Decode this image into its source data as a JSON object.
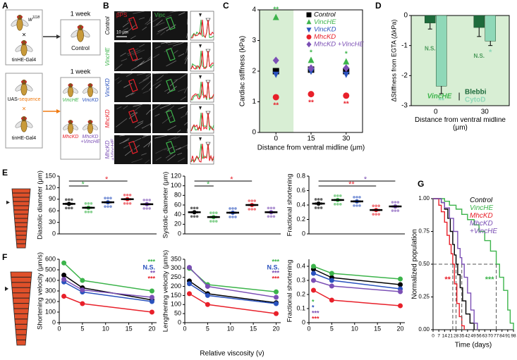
{
  "panel_labels": [
    "A",
    "B",
    "C",
    "D",
    "E",
    "F",
    "G"
  ],
  "panel_a": {
    "week_label_top": "1 week",
    "week_label_bottom": "1 week",
    "control_parent_female": {
      "text": "w",
      "sup": "1118"
    },
    "cross_top": "×",
    "driver_top": "tinHE-Gal4",
    "control_label": "Control",
    "uas_prefix": "UAS-",
    "uas_suffix": "sequence",
    "cross_bottom": "×",
    "driver_bottom": "tinHE-Gal4",
    "genotypes": [
      {
        "label": "VincHE",
        "color": "#3cb44b"
      },
      {
        "label": "VincKD",
        "color": "#2a52be"
      },
      {
        "label": "MhcKD",
        "color": "#e8202a"
      },
      {
        "label": "MhcKD +VincHE",
        "color": "#7b4fb5"
      }
    ]
  },
  "panel_b": {
    "channels": [
      {
        "label": "βPS",
        "color": "#e8202a"
      },
      {
        "label": "Vinc",
        "color": "#3cb44b"
      }
    ],
    "scale_bar": "10 μm",
    "rows": [
      {
        "label": "Control",
        "color": "#000000"
      },
      {
        "label": "VincHE",
        "color": "#3cb44b"
      },
      {
        "label": "VincKD",
        "color": "#2a52be"
      },
      {
        "label": "MhcKD",
        "color": "#e8202a"
      },
      {
        "label": "MhcKD +VincHE",
        "color": "#7b4fb5"
      }
    ]
  },
  "chart_data": [
    {
      "type": "scatter",
      "y_label": "Cardiac stiffness (kPa)",
      "x_label": "Distance from ventral midline (μm)",
      "x": [
        0,
        15,
        30
      ],
      "xlim": [
        -7,
        37
      ],
      "xticks": [
        0,
        15,
        30
      ],
      "ylim": [
        0,
        4
      ],
      "yticks": [
        0,
        1,
        2,
        3,
        4
      ],
      "shade_color": "#d8eed4",
      "series": [
        {
          "name": "Control",
          "color": "#000000",
          "marker": "square",
          "values": [
            2.0,
            2.05,
            2.0
          ]
        },
        {
          "name": "VincHE",
          "color": "#3cb44b",
          "marker": "triangle-up",
          "values": [
            3.75,
            2.35,
            2.3
          ],
          "significance": [
            "**",
            "*",
            "*"
          ],
          "significance_position": "above"
        },
        {
          "name": "VincKD",
          "color": "#2a52be",
          "marker": "triangle-down",
          "values": [
            1.9,
            2.0,
            1.9
          ]
        },
        {
          "name": "MhcKD",
          "color": "#e8202a",
          "marker": "circle",
          "values": [
            1.15,
            1.25,
            1.2
          ],
          "significance": [
            "**",
            "**",
            "**"
          ],
          "significance_position": "below"
        },
        {
          "name": "MhcKD +VincHE",
          "color": "#7b4fb5",
          "marker": "diamond",
          "values": [
            2.35,
            2.1,
            2.1
          ]
        }
      ]
    },
    {
      "type": "bar",
      "y_label": "ΔStiffness from EGTA (ΔkPa)",
      "x_label": "Distance from ventral midline (μm)",
      "categories": [
        "0",
        "30"
      ],
      "ylim": [
        -3,
        0
      ],
      "yticks": [
        0,
        -1,
        -2,
        -3
      ],
      "shade_color": "#d8eed4",
      "legend_title": "VincHE",
      "legend_separator": "|",
      "series": [
        {
          "name": "Blebbi",
          "color": "#1e6b3c",
          "values": [
            -0.25,
            -0.4
          ],
          "errors": [
            0.2,
            0.3
          ],
          "significance": [
            "N.S.",
            "N.S."
          ]
        },
        {
          "name": "CytoD",
          "color": "#8fd8b8",
          "values": [
            -2.35,
            -0.85
          ],
          "errors": [
            0.25,
            0.15
          ],
          "significance": [
            "**",
            "*"
          ]
        }
      ]
    },
    {
      "type": "dot",
      "y_label": "Diastolic diameter (μm)",
      "categories": [
        null,
        null,
        null,
        null,
        null
      ],
      "values": [
        78,
        68,
        82,
        90,
        77
      ],
      "colors": [
        "#000000",
        "#3cb44b",
        "#2a52be",
        "#e8202a",
        "#7b4fb5"
      ],
      "significance": [
        null,
        "*",
        null,
        "*",
        null
      ],
      "ylim": [
        0,
        150
      ],
      "yticks": [
        0,
        30,
        60,
        90,
        120,
        150
      ]
    },
    {
      "type": "dot",
      "y_label": "Systolic diameter (μm)",
      "categories": [
        null,
        null,
        null,
        null,
        null
      ],
      "values": [
        45,
        35,
        44,
        60,
        45
      ],
      "colors": [
        "#000000",
        "#3cb44b",
        "#2a52be",
        "#e8202a",
        "#7b4fb5"
      ],
      "significance": [
        null,
        "*",
        null,
        "*",
        null
      ],
      "ylim": [
        0,
        120
      ],
      "yticks": [
        0,
        20,
        40,
        60,
        80,
        100,
        120
      ]
    },
    {
      "type": "dot",
      "y_label": "Fractional shortening",
      "categories": [
        null,
        null,
        null,
        null,
        null
      ],
      "values": [
        0.42,
        0.47,
        0.45,
        0.33,
        0.38
      ],
      "colors": [
        "#000000",
        "#3cb44b",
        "#2a52be",
        "#e8202a",
        "#7b4fb5"
      ],
      "significance": [
        null,
        null,
        null,
        "**",
        "*"
      ],
      "ylim": [
        0,
        0.8
      ],
      "yticks": [
        0,
        0.2,
        0.4,
        0.6,
        0.8
      ]
    },
    {
      "type": "line",
      "y_label": "Shortening velocity (μm/s)",
      "x": [
        1,
        5,
        20
      ],
      "xlim": [
        0,
        21
      ],
      "xticks": [
        0,
        5,
        10,
        15,
        20
      ],
      "ylim": [
        0,
        600
      ],
      "yticks": [
        0,
        100,
        200,
        300,
        400,
        500,
        600
      ],
      "stats_position": "top-right",
      "series": [
        {
          "color": "#000000",
          "values": [
            450,
            330,
            215
          ]
        },
        {
          "color": "#3cb44b",
          "values": [
            565,
            400,
            300
          ],
          "significance": "***"
        },
        {
          "color": "#2a52be",
          "values": [
            385,
            290,
            200
          ],
          "significance": "N.S."
        },
        {
          "color": "#7b4fb5",
          "values": [
            410,
            310,
            240
          ],
          "significance": "**"
        },
        {
          "color": "#e8202a",
          "values": [
            250,
            180,
            100
          ],
          "significance": "***"
        }
      ]
    },
    {
      "type": "line",
      "y_label": "Lengthening velocity (μm/s)",
      "x_label": "Relative viscosity (ν)",
      "x": [
        1,
        5,
        20
      ],
      "xlim": [
        0,
        21
      ],
      "xticks": [
        0,
        5,
        10,
        15,
        20
      ],
      "ylim": [
        0,
        350
      ],
      "yticks": [
        0,
        50,
        100,
        150,
        200,
        250,
        300,
        350
      ],
      "stats_position": "top-right",
      "series": [
        {
          "color": "#000000",
          "values": [
            230,
            160,
            110
          ]
        },
        {
          "color": "#3cb44b",
          "values": [
            300,
            210,
            170
          ],
          "significance": "***"
        },
        {
          "color": "#2a52be",
          "values": [
            215,
            150,
            105
          ],
          "significance": "N.S."
        },
        {
          "color": "#7b4fb5",
          "values": [
            305,
            200,
            140
          ],
          "significance": "***"
        },
        {
          "color": "#e8202a",
          "values": [
            160,
            100,
            50
          ],
          "significance": "***"
        }
      ]
    },
    {
      "type": "line",
      "y_label": "Fractional shortening",
      "x": [
        1,
        5,
        20
      ],
      "xlim": [
        0,
        21
      ],
      "xticks": [
        0,
        5,
        10,
        15,
        20
      ],
      "ylim": [
        0,
        0.45
      ],
      "yticks": [
        0,
        0.1,
        0.2,
        0.3,
        0.4
      ],
      "stats_position": "bottom-left",
      "series": [
        {
          "color": "#000000",
          "values": [
            0.38,
            0.32,
            0.27
          ]
        },
        {
          "color": "#3cb44b",
          "values": [
            0.4,
            0.35,
            0.31
          ],
          "significance": "*"
        },
        {
          "color": "#2a52be",
          "values": [
            0.35,
            0.3,
            0.24
          ],
          "significance": "*"
        },
        {
          "color": "#7b4fb5",
          "values": [
            0.3,
            0.26,
            0.22
          ],
          "significance": "***"
        },
        {
          "color": "#e8202a",
          "values": [
            0.23,
            0.16,
            0.12
          ],
          "significance": "***"
        }
      ]
    },
    {
      "type": "survival",
      "y_label": "Normalized population",
      "x_label": "Time (days)",
      "xlim": [
        0,
        98
      ],
      "xticks": [
        0,
        7,
        14,
        21,
        28,
        35,
        42,
        49,
        56,
        63,
        70,
        77,
        84,
        91,
        98
      ],
      "ylim": [
        0,
        1
      ],
      "yticks": [
        {
          "value": 0,
          "label": "0.00"
        },
        {
          "value": 0.25,
          "label": "0.25"
        },
        {
          "value": 0.5,
          "label": "0.50"
        },
        {
          "value": 0.75,
          "label": "0.75"
        },
        {
          "value": 1,
          "label": "1.00"
        }
      ],
      "reference_y": 0.5,
      "series": [
        {
          "name": "Control",
          "color": "#000000",
          "median": 28,
          "x": [
            0,
            10,
            14,
            18,
            21,
            24,
            26,
            28,
            30,
            33,
            36,
            40,
            45,
            50
          ],
          "values": [
            1,
            0.97,
            0.92,
            0.85,
            0.75,
            0.65,
            0.57,
            0.5,
            0.42,
            0.32,
            0.22,
            0.12,
            0.05,
            0
          ]
        },
        {
          "name": "VincHE",
          "color": "#3cb44b",
          "median": 77,
          "significance": "***",
          "x": [
            0,
            14,
            20,
            28,
            35,
            42,
            50,
            56,
            63,
            70,
            77,
            81,
            86,
            91,
            94,
            98
          ],
          "values": [
            1,
            0.98,
            0.95,
            0.92,
            0.88,
            0.84,
            0.8,
            0.75,
            0.68,
            0.6,
            0.5,
            0.4,
            0.3,
            0.15,
            0.05,
            0
          ]
        },
        {
          "name": "MhcKD",
          "color": "#e8202a",
          "median": 24,
          "significance": "**",
          "x": [
            0,
            7,
            10,
            14,
            17,
            20,
            22,
            24,
            26,
            29,
            32,
            35,
            38
          ],
          "values": [
            1,
            0.95,
            0.9,
            0.82,
            0.72,
            0.65,
            0.58,
            0.5,
            0.35,
            0.2,
            0.1,
            0.03,
            0
          ]
        },
        {
          "name": "MhcKD +VincHE",
          "color": "#7b4fb5",
          "median": 35,
          "x": [
            0,
            10,
            14,
            20,
            25,
            30,
            33,
            35,
            38,
            42,
            46,
            50,
            54
          ],
          "values": [
            1,
            0.97,
            0.93,
            0.85,
            0.75,
            0.62,
            0.55,
            0.5,
            0.4,
            0.28,
            0.15,
            0.05,
            0
          ]
        }
      ]
    }
  ]
}
